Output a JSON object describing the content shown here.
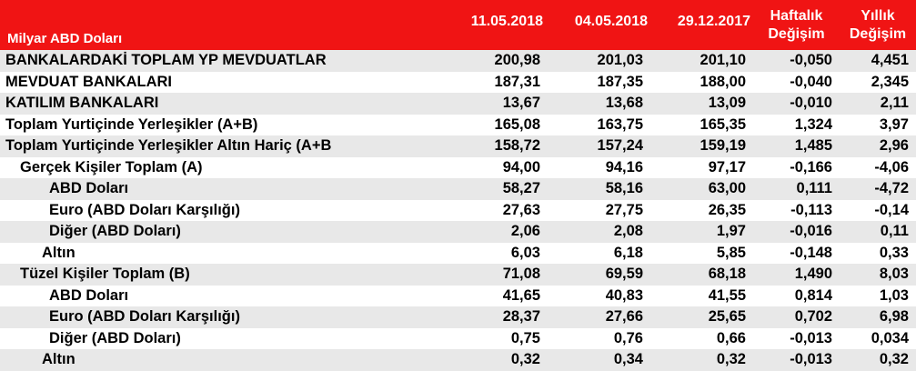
{
  "header": {
    "unit_label": "Milyar ABD Doları",
    "columns": [
      "11.05.2018",
      "04.05.2018",
      "29.12.2017"
    ],
    "weekly_change": [
      "Haftalık",
      "Değişim"
    ],
    "yearly_change": [
      "Yıllık",
      "Değişim"
    ]
  },
  "rows": [
    {
      "label": "BANKALARDAKİ TOPLAM YP MEVDUATLAR",
      "v": [
        "200,98",
        "201,03",
        "201,10",
        "-0,050",
        "4,451"
      ]
    },
    {
      "label": "MEVDUAT BANKALARI",
      "v": [
        "187,31",
        "187,35",
        "188,00",
        "-0,040",
        "2,345"
      ]
    },
    {
      "label": "KATILIM BANKALARI",
      "v": [
        "13,67",
        "13,68",
        "13,09",
        "-0,010",
        "2,11"
      ]
    },
    {
      "label": "Toplam Yurtiçinde Yerleşikler (A+B)",
      "v": [
        "165,08",
        "163,75",
        "165,35",
        "1,324",
        "3,97"
      ]
    },
    {
      "label": "Toplam Yurtiçinde Yerleşikler Altın Hariç (A+B",
      "v": [
        "158,72",
        "157,24",
        "159,19",
        "1,485",
        "2,96"
      ]
    },
    {
      "label": "Gerçek Kişiler Toplam (A)",
      "v": [
        "94,00",
        "94,16",
        "97,17",
        "-0,166",
        "-4,06"
      ]
    },
    {
      "label": "ABD Doları",
      "v": [
        "58,27",
        "58,16",
        "63,00",
        "0,111",
        "-4,72"
      ]
    },
    {
      "label": "Euro (ABD Doları Karşılığı)",
      "v": [
        "27,63",
        "27,75",
        "26,35",
        "-0,113",
        "-0,14"
      ]
    },
    {
      "label": "Diğer (ABD Doları)",
      "v": [
        "2,06",
        "2,08",
        "1,97",
        "-0,016",
        "0,11"
      ]
    },
    {
      "label": "Altın",
      "v": [
        "6,03",
        "6,18",
        "5,85",
        "-0,148",
        "0,33"
      ]
    },
    {
      "label": "Tüzel Kişiler Toplam (B)",
      "v": [
        "71,08",
        "69,59",
        "68,18",
        "1,490",
        "8,03"
      ]
    },
    {
      "label": "ABD Doları",
      "v": [
        "41,65",
        "40,83",
        "41,55",
        "0,814",
        "1,03"
      ]
    },
    {
      "label": "Euro (ABD Doları Karşılığı)",
      "v": [
        "28,37",
        "27,66",
        "25,65",
        "0,702",
        "6,98"
      ]
    },
    {
      "label": "Diğer (ABD Doları)",
      "v": [
        "0,75",
        "0,76",
        "0,66",
        "-0,013",
        "0,034"
      ]
    },
    {
      "label": "Altın",
      "v": [
        "0,32",
        "0,34",
        "0,32",
        "-0,013",
        "0,32"
      ]
    }
  ]
}
